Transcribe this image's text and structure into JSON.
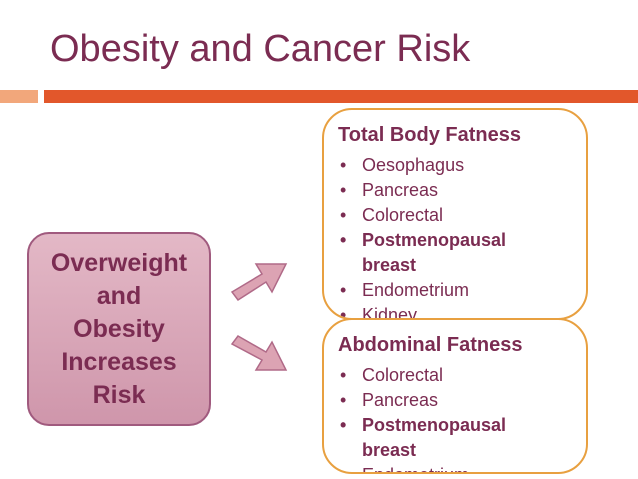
{
  "title": "Obesity and Cancer Risk",
  "cause": {
    "lines": [
      "Overweight",
      "and",
      "Obesity",
      "Increases",
      "Risk"
    ]
  },
  "boxes": [
    {
      "heading": "Total Body Fatness",
      "items": [
        {
          "text": "Oesophagus",
          "bold": false
        },
        {
          "text": "Pancreas",
          "bold": false
        },
        {
          "text": "Colorectal",
          "bold": false
        },
        {
          "text": "Postmenopausal breast",
          "bold": true
        },
        {
          "text": "Endometrium",
          "bold": false
        },
        {
          "text": "Kidney",
          "bold": false
        }
      ]
    },
    {
      "heading": "Abdominal Fatness",
      "items": [
        {
          "text": "Colorectal",
          "bold": false
        },
        {
          "text": "Pancreas",
          "bold": false
        },
        {
          "text": "Postmenopausal breast",
          "bold": true
        },
        {
          "text": "Endometrium",
          "bold": false
        }
      ]
    }
  ]
}
